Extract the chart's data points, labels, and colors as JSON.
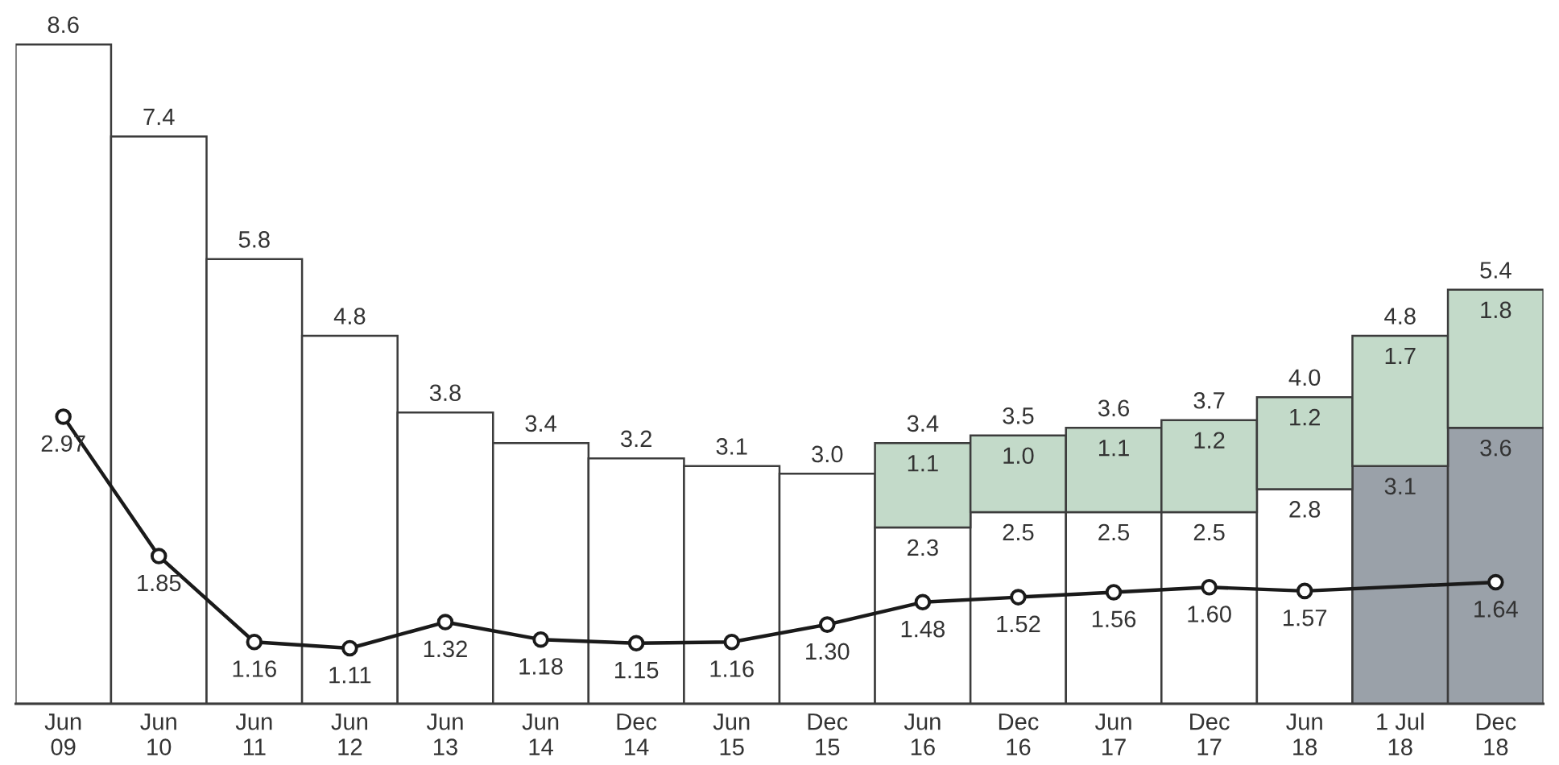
{
  "chart_data": {
    "type": "bar",
    "stacked": true,
    "categories": [
      "Jun\n09",
      "Jun\n10",
      "Jun\n11",
      "Jun\n12",
      "Jun\n13",
      "Jun\n14",
      "Dec\n14",
      "Jun\n15",
      "Dec\n15",
      "Jun\n16",
      "Dec\n16",
      "Jun\n17",
      "Dec\n17",
      "Jun\n18",
      "1 Jul\n18",
      "Dec\n18"
    ],
    "series": [
      {
        "color": "#ffffff",
        "values": [
          8.6,
          7.4,
          5.8,
          4.8,
          3.8,
          3.4,
          3.2,
          3.1,
          3.0,
          2.3,
          2.5,
          2.5,
          2.5,
          2.8,
          null,
          null
        ],
        "value_labels": [
          null,
          null,
          null,
          null,
          null,
          null,
          null,
          null,
          null,
          "2.3",
          "2.5",
          "2.5",
          "2.5",
          "2.8",
          null,
          null
        ]
      },
      {
        "color": "#9aa1a9",
        "values": [
          null,
          null,
          null,
          null,
          null,
          null,
          null,
          null,
          null,
          null,
          null,
          null,
          null,
          null,
          3.1,
          3.6
        ],
        "value_labels": [
          null,
          null,
          null,
          null,
          null,
          null,
          null,
          null,
          null,
          null,
          null,
          null,
          null,
          null,
          "3.1",
          "3.6"
        ]
      },
      {
        "color": "#c3dac9",
        "values": [
          null,
          null,
          null,
          null,
          null,
          null,
          null,
          null,
          null,
          1.1,
          1.0,
          1.1,
          1.2,
          1.2,
          1.7,
          1.8
        ],
        "value_labels": [
          null,
          null,
          null,
          null,
          null,
          null,
          null,
          null,
          null,
          "1.1",
          "1.0",
          "1.1",
          "1.2",
          "1.2",
          "1.7",
          "1.8"
        ]
      },
      {
        "type": "line",
        "axis": "y2",
        "color": "#1a1a1a",
        "marker": "circle",
        "values": [
          2.97,
          1.85,
          1.16,
          1.11,
          1.32,
          1.18,
          1.15,
          1.16,
          1.3,
          1.48,
          1.52,
          1.56,
          1.6,
          1.57,
          null,
          1.64
        ],
        "value_labels": [
          "2.97",
          "1.85",
          "1.16",
          "1.11",
          "1.32",
          "1.18",
          "1.15",
          "1.16",
          "1.30",
          "1.48",
          "1.52",
          "1.56",
          "1.60",
          "1.57",
          null,
          "1.64"
        ]
      }
    ],
    "totals": [
      "8.6",
      "7.4",
      "5.8",
      "4.8",
      "3.8",
      "3.4",
      "3.2",
      "3.1",
      "3.0",
      "3.4",
      "3.5",
      "3.6",
      "3.7",
      "4.0",
      "4.8",
      "5.4"
    ]
  }
}
